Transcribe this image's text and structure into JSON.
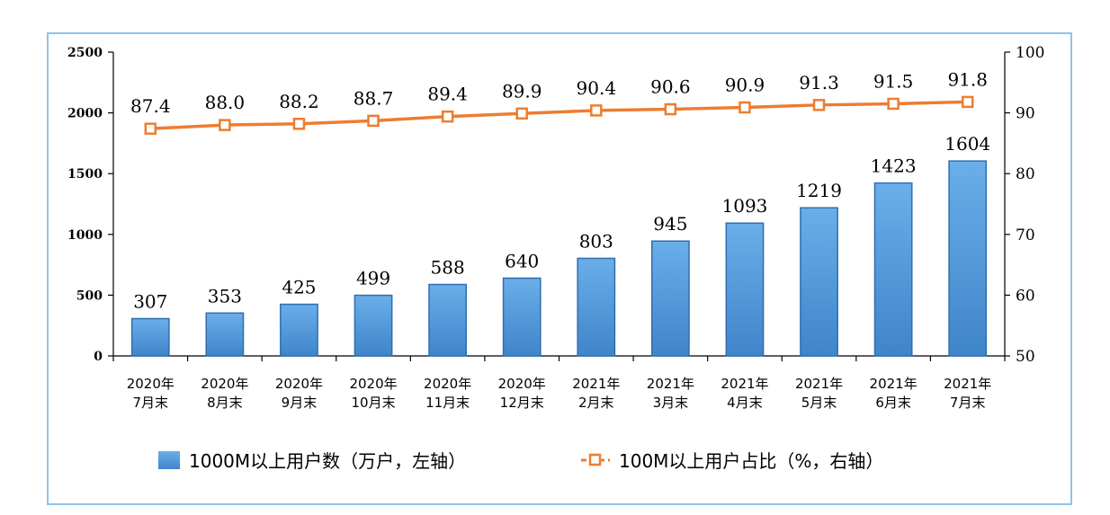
{
  "chart_data": {
    "type": "bar",
    "categories": [
      [
        "2020年",
        "7月末"
      ],
      [
        "2020年",
        "8月末"
      ],
      [
        "2020年",
        "9月末"
      ],
      [
        "2020年",
        "10月末"
      ],
      [
        "2020年",
        "11月末"
      ],
      [
        "2020年",
        "12月末"
      ],
      [
        "2021年",
        "2月末"
      ],
      [
        "2021年",
        "3月末"
      ],
      [
        "2021年",
        "4月末"
      ],
      [
        "2021年",
        "5月末"
      ],
      [
        "2021年",
        "6月末"
      ],
      [
        "2021年",
        "7月末"
      ]
    ],
    "series": [
      {
        "name": "1000M以上用户数（万户，左轴）",
        "type": "bar",
        "axis": "left",
        "color": "#5b9bd5",
        "values": [
          307,
          353,
          425,
          499,
          588,
          640,
          803,
          945,
          1093,
          1219,
          1423,
          1604
        ]
      },
      {
        "name": "100M以上用户占比（%，右轴）",
        "type": "line",
        "axis": "right",
        "color": "#ed7d31",
        "values": [
          87.4,
          88.0,
          88.2,
          88.7,
          89.4,
          89.9,
          90.4,
          90.6,
          90.9,
          91.3,
          91.5,
          91.8
        ],
        "labels": [
          "87.4",
          "88.0",
          "88.2",
          "88.7",
          "89.4",
          "89.9",
          "90.4",
          "90.6",
          "90.9",
          "91.3",
          "91.5",
          "91.8"
        ]
      }
    ],
    "y_left": {
      "ylim": [
        0,
        2500
      ],
      "ticks": [
        0,
        500,
        1000,
        1500,
        2000,
        2500
      ]
    },
    "y_right": {
      "ylim": [
        50,
        100
      ],
      "ticks": [
        50,
        60,
        70,
        80,
        90,
        100
      ]
    },
    "legend_position": "bottom",
    "grid": false
  }
}
